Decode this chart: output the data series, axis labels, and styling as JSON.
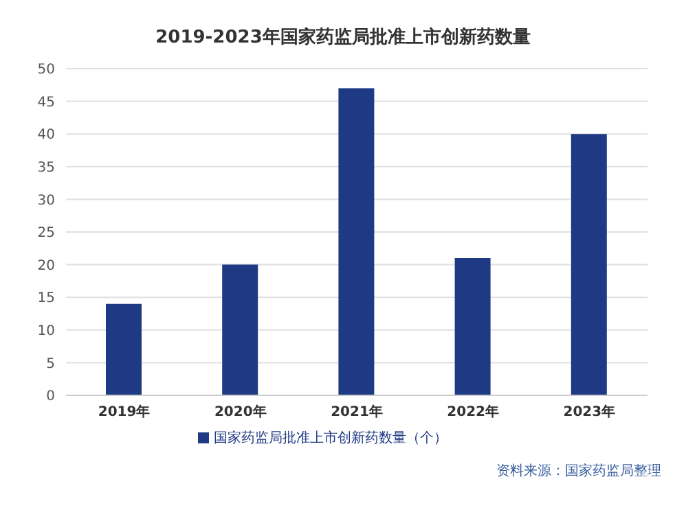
{
  "chart_data": {
    "type": "bar",
    "title": "2019-2023年国家药监局批准上市创新药数量",
    "categories": [
      "2019年",
      "2020年",
      "2021年",
      "2022年",
      "2023年"
    ],
    "series": [
      {
        "name": "国家药监局批准上市创新药数量（个）",
        "color": "#1f3a84",
        "values": [
          14,
          20,
          47,
          21,
          40
        ]
      }
    ],
    "ylim": [
      0,
      50
    ],
    "yticks": [
      0,
      5,
      10,
      15,
      20,
      25,
      30,
      35,
      40,
      45,
      50
    ],
    "grid": "y",
    "legend": "bottom",
    "annotations": [
      "资料来源：国家药监局整理"
    ]
  }
}
